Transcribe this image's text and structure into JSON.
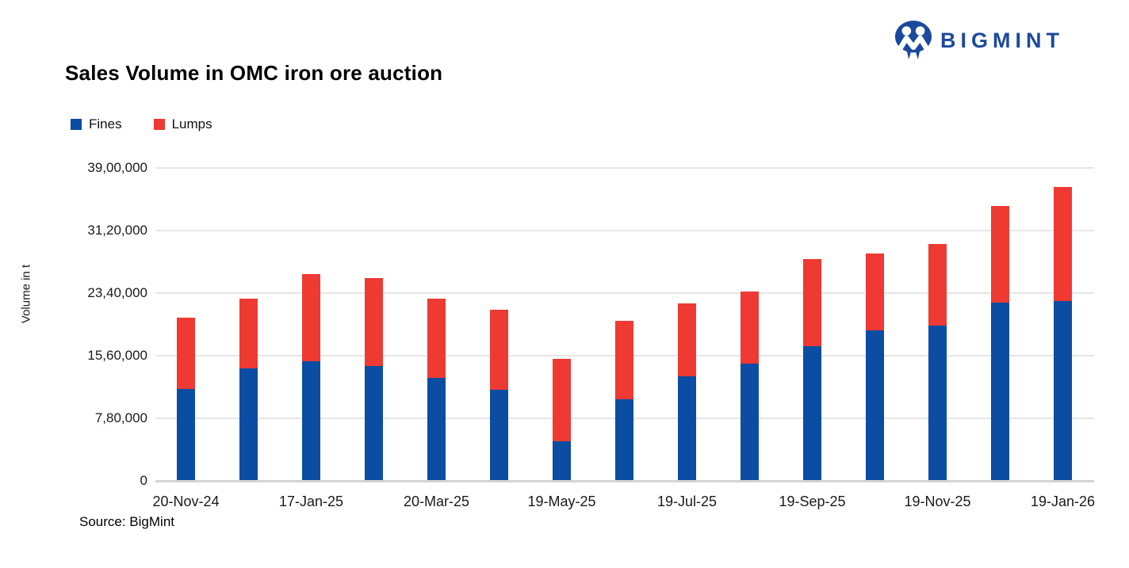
{
  "header": {
    "title": "Sales Volume in OMC iron ore auction",
    "logo_text": "BIGMINT",
    "logo_color": "#1B4A9C"
  },
  "legend": {
    "items": [
      {
        "label": "Fines",
        "color": "#0B4DA2"
      },
      {
        "label": "Lumps",
        "color": "#EE3A33"
      }
    ]
  },
  "source": "Source: BigMint",
  "colors": {
    "fines_blue": "#0B4DA2",
    "lumps_red": "#EE3A33",
    "gridline": "#E6E6E6",
    "axis_line": "#D4D4D4",
    "text": "#000000"
  },
  "chart_data": {
    "type": "bar",
    "stacked": true,
    "title": "Sales Volume in OMC iron ore auction",
    "xlabel": "",
    "ylabel": "Volume in t",
    "ylim": [
      0,
      3900000
    ],
    "y_ticks": [
      0,
      780000,
      1560000,
      2340000,
      3120000,
      3900000
    ],
    "y_tick_labels": [
      "0",
      "7,80,000",
      "15,60,000",
      "23,40,000",
      "31,20,000",
      "39,00,000"
    ],
    "grid": "horizontal",
    "legend_position": "top-left",
    "categories": [
      "20-Nov-24",
      "",
      "17-Jan-25",
      "",
      "20-Mar-25",
      "",
      "19-May-25",
      "",
      "19-Jul-25",
      "",
      "19-Sep-25",
      "",
      "19-Nov-25",
      "",
      "19-Jan-26"
    ],
    "series": [
      {
        "name": "Fines",
        "color": "#0B4DA2",
        "values": [
          1140000,
          1390000,
          1480000,
          1420000,
          1270000,
          1130000,
          480000,
          1010000,
          1290000,
          1450000,
          1670000,
          1870000,
          1930000,
          2210000,
          2230000
        ]
      },
      {
        "name": "Lumps",
        "color": "#EE3A33",
        "values": [
          880000,
          870000,
          1090000,
          1100000,
          990000,
          990000,
          1030000,
          970000,
          910000,
          900000,
          1080000,
          950000,
          1010000,
          1210000,
          1420000
        ]
      }
    ],
    "totals": [
      2020000,
      2260000,
      2570000,
      2520000,
      2260000,
      2120000,
      1510000,
      1980000,
      2200000,
      2350000,
      2750000,
      2820000,
      2940000,
      3420000,
      3650000
    ]
  }
}
